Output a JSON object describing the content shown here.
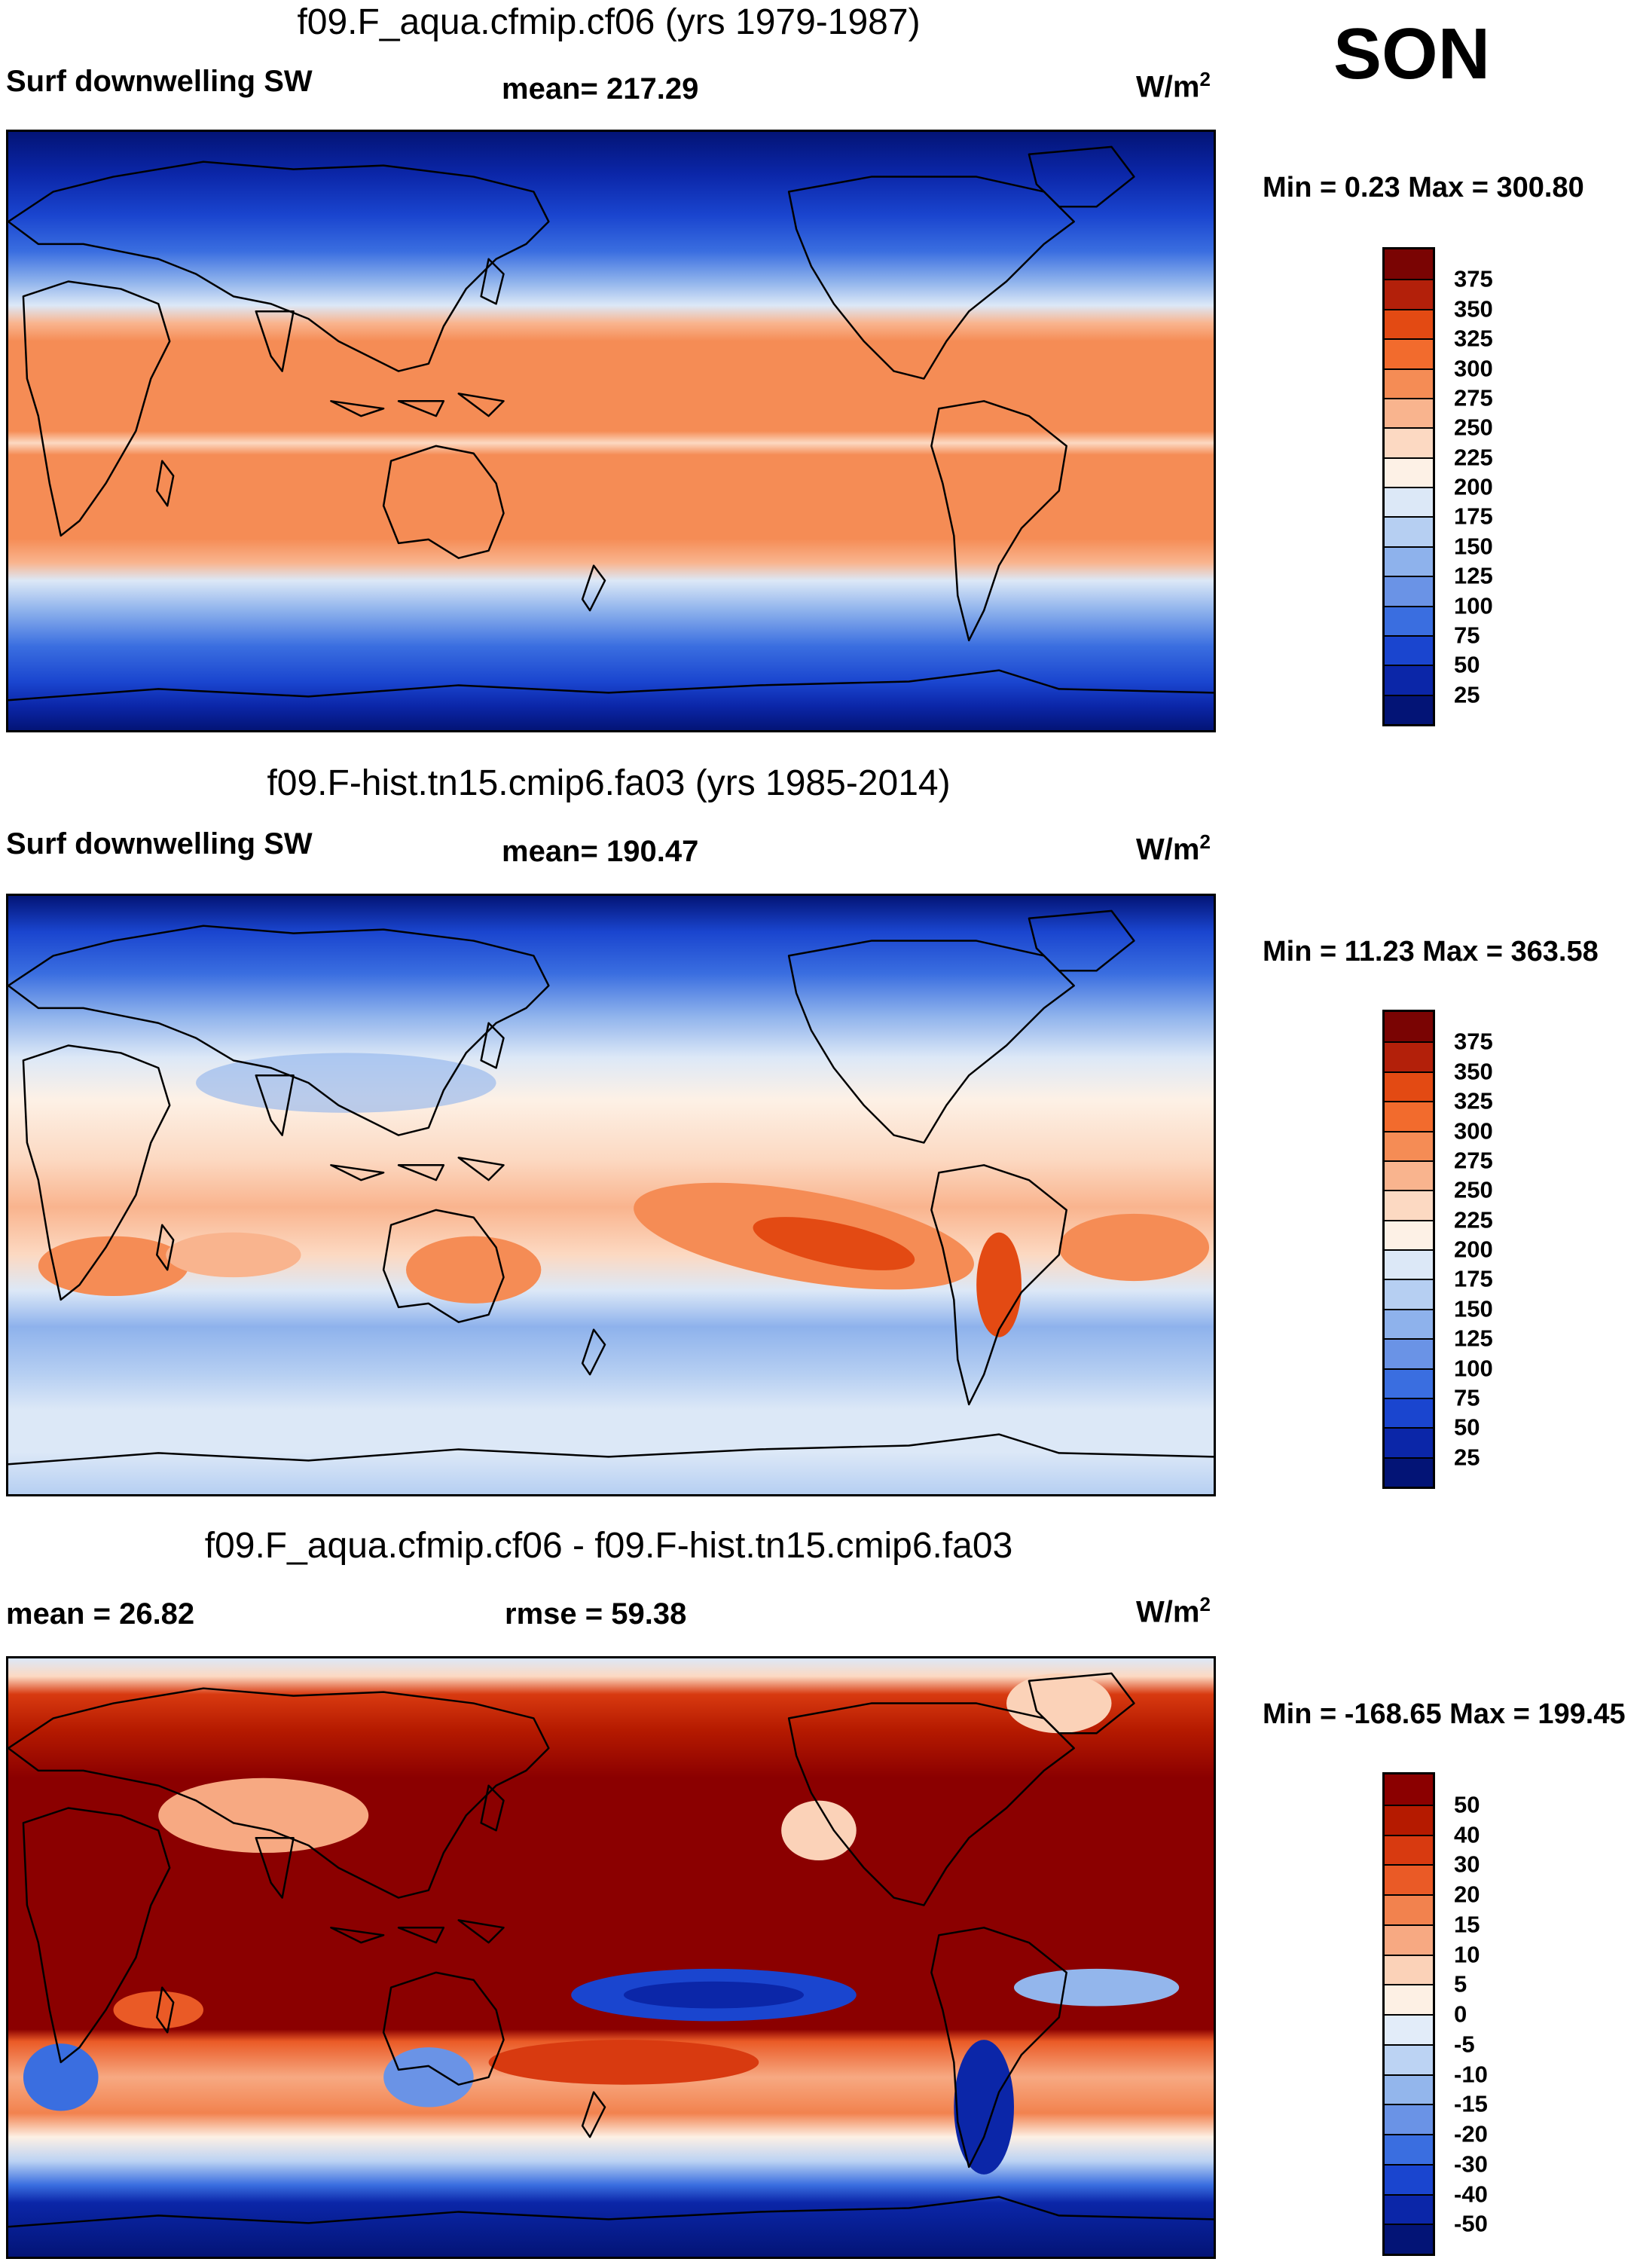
{
  "season": "SON",
  "units_base": "W/m",
  "units_exp": "2",
  "panels": [
    {
      "title": "f09.F_aqua.cfmip.cf06 (yrs 1979-1987)",
      "left_label": "Surf downwelling SW",
      "center_label": "mean= 217.29",
      "minmax": "Min =   0.23 Max = 300.80",
      "colorbar": {
        "labels": [
          "375",
          "350",
          "325",
          "300",
          "275",
          "250",
          "225",
          "200",
          "175",
          "150",
          "125",
          "100",
          "75",
          "50",
          "25"
        ],
        "colors": [
          "#7a0403",
          "#b3200a",
          "#e34a13",
          "#f26b2d",
          "#f58c55",
          "#f9b48e",
          "#fcd9c2",
          "#fdf1e6",
          "#dce8f7",
          "#b6cff2",
          "#8eb2ec",
          "#6a93e6",
          "#3a6ee0",
          "#1a45cf",
          "#0b26a8",
          "#031476"
        ]
      }
    },
    {
      "title": "f09.F-hist.tn15.cmip6.fa03 (yrs 1985-2014)",
      "left_label": "Surf downwelling SW",
      "center_label": "mean= 190.47",
      "minmax": "Min =  11.23 Max = 363.58",
      "colorbar": {
        "labels": [
          "375",
          "350",
          "325",
          "300",
          "275",
          "250",
          "225",
          "200",
          "175",
          "150",
          "125",
          "100",
          "75",
          "50",
          "25"
        ],
        "colors": [
          "#7a0403",
          "#b3200a",
          "#e34a13",
          "#f26b2d",
          "#f58c55",
          "#f9b48e",
          "#fcd9c2",
          "#fdf1e6",
          "#dce8f7",
          "#b6cff2",
          "#8eb2ec",
          "#6a93e6",
          "#3a6ee0",
          "#1a45cf",
          "#0b26a8",
          "#031476"
        ]
      }
    },
    {
      "title": "f09.F_aqua.cfmip.cf06 - f09.F-hist.tn15.cmip6.fa03",
      "left_label": "mean =  26.82",
      "center_label": "rmse =  59.38",
      "minmax": "Min = -168.65 Max = 199.45",
      "colorbar": {
        "labels": [
          "50",
          "40",
          "30",
          "20",
          "15",
          "10",
          "5",
          "0",
          "-5",
          "-10",
          "-15",
          "-20",
          "-30",
          "-40",
          "-50"
        ],
        "colors": [
          "#8b0000",
          "#b51a00",
          "#d83a10",
          "#ea5a26",
          "#f2824e",
          "#f7a982",
          "#fbd2b8",
          "#fdf0e4",
          "#e2ecf9",
          "#bcd3f3",
          "#93b6ec",
          "#6a93e6",
          "#3a6ee0",
          "#1a45cf",
          "#0b26a8",
          "#031476"
        ]
      }
    }
  ]
}
